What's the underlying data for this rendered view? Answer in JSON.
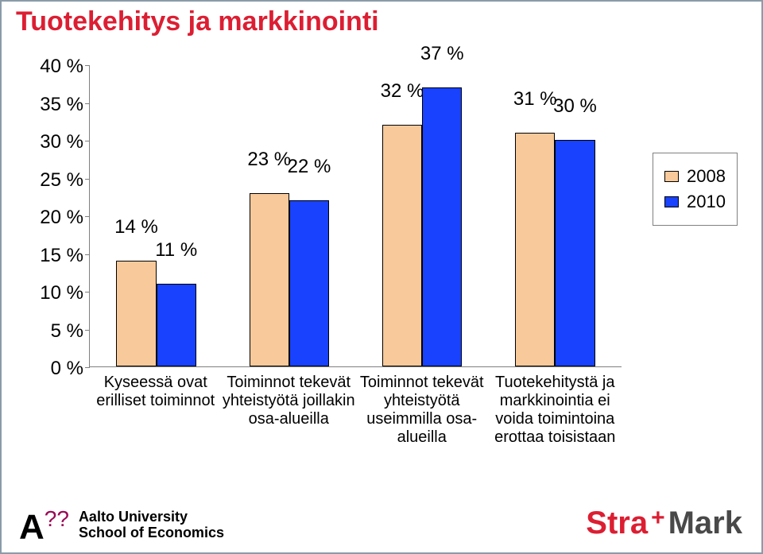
{
  "title": {
    "text": "Tuotekehitys ja markkinointi",
    "color": "#dc1e32",
    "fontsize": 34
  },
  "chart": {
    "type": "bar",
    "ylim": [
      0,
      40
    ],
    "ytick_step": 5,
    "ytick_labels": [
      "0 %",
      "5 %",
      "10 %",
      "15 %",
      "20 %",
      "25 %",
      "30 %",
      "35 %",
      "40 %"
    ],
    "ytick_fontsize": 24,
    "background_color": "#ffffff",
    "axis_color": "#808080",
    "bar_border_color": "#000000",
    "label_fontsize": 20,
    "value_fontsize": 24,
    "bar_width_pct": 30,
    "series": [
      {
        "name": "2008",
        "color": "#f8c99a"
      },
      {
        "name": "2010",
        "color": "#1942ff"
      }
    ],
    "categories": [
      {
        "label": "Kyseessä ovat erilliset toiminnot",
        "values": [
          14,
          11
        ],
        "value_labels": [
          "14 %",
          "11 %"
        ]
      },
      {
        "label": "Toiminnot tekevät yhteistyötä joillakin osa-alueilla",
        "values": [
          23,
          22
        ],
        "value_labels": [
          "23 %",
          "22 %"
        ]
      },
      {
        "label": "Toiminnot tekevät yhteistyötä useimmilla osa-alueilla",
        "values": [
          32,
          37
        ],
        "value_labels": [
          "32 %",
          "37 %"
        ]
      },
      {
        "label": "Tuotekehitystä ja markkinointia ei voida toimintoina erottaa toisistaan",
        "values": [
          31,
          30
        ],
        "value_labels": [
          "31 %",
          "30 %"
        ]
      }
    ],
    "legend": {
      "fontsize": 22,
      "border_color": "#808080"
    }
  },
  "footer": {
    "aalto_line1": "Aalto University",
    "aalto_line2": "School of Economics",
    "aalto_fontsize": 18,
    "brand_stra": "Stra",
    "brand_plus": "+",
    "brand_mark": "Mark",
    "brand_fontsize": 40
  }
}
